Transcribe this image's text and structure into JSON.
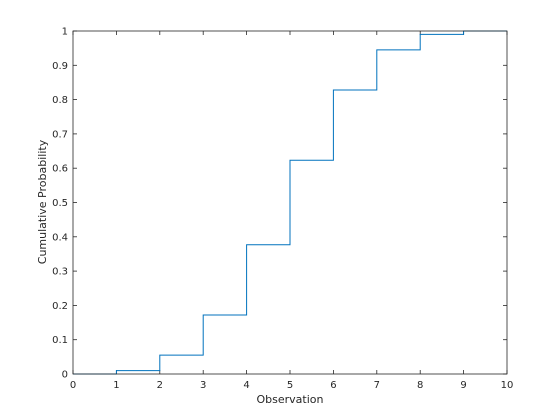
{
  "chart_data": {
    "type": "line",
    "subtype": "stairs",
    "title": "",
    "xlabel": "Observation",
    "ylabel": "Cumulative Probability",
    "xlim": [
      0,
      10
    ],
    "ylim": [
      0,
      1
    ],
    "xticks": [
      0,
      1,
      2,
      3,
      4,
      5,
      6,
      7,
      8,
      9,
      10
    ],
    "yticks": [
      0,
      0.1,
      0.2,
      0.3,
      0.4,
      0.5,
      0.6,
      0.7,
      0.8,
      0.9,
      1
    ],
    "ytick_labels": [
      "0",
      "0.1",
      "0.2",
      "0.3",
      "0.4",
      "0.5",
      "0.6",
      "0.7",
      "0.8",
      "0.9",
      "1"
    ],
    "grid": false,
    "series": [
      {
        "x": [
          0,
          1,
          2,
          3,
          4,
          5,
          6,
          7,
          8,
          9,
          10
        ],
        "y": [
          0,
          0.01,
          0.055,
          0.172,
          0.377,
          0.623,
          0.828,
          0.945,
          0.99,
          1.0,
          1.0
        ],
        "color": "#0072bd"
      }
    ]
  }
}
